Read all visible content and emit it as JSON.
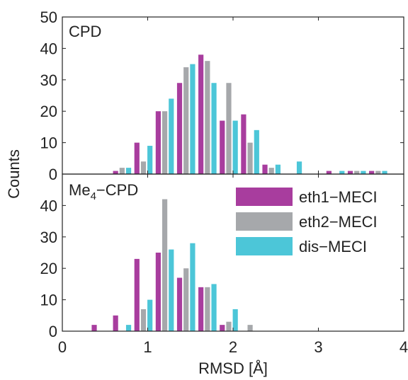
{
  "chart_data": {
    "type": "bar",
    "xlabel": "RMSD [Å]",
    "ylabel": "Counts",
    "xlim": [
      0,
      4
    ],
    "x_ticks": [
      "0",
      "1",
      "2",
      "3",
      "4"
    ],
    "grid": false,
    "legend": {
      "placement": "top-right of lower panel",
      "entries": [
        {
          "name": "eth1−MECI",
          "color": "#a83d9e"
        },
        {
          "name": "eth2−MECI",
          "color": "#a6a8ab"
        },
        {
          "name": "dis−MECI",
          "color": "#4cc6d8"
        }
      ]
    },
    "bin_centers": [
      0.45,
      0.7,
      0.95,
      1.2,
      1.45,
      1.7,
      1.95,
      2.2,
      2.45,
      2.7,
      2.95,
      3.2,
      3.45,
      3.7
    ],
    "panels": [
      {
        "title": "CPD",
        "ylim": [
          0,
          50
        ],
        "y_ticks": [
          "0",
          "10",
          "20",
          "30",
          "40",
          "50"
        ],
        "series": [
          {
            "name": "eth1−MECI",
            "color": "#a83d9e",
            "values": [
              0,
              1,
              10,
              20,
              29,
              38,
              17,
              19,
              3,
              0,
              0,
              1,
              1,
              1
            ]
          },
          {
            "name": "eth2−MECI",
            "color": "#a6a8ab",
            "values": [
              0,
              2,
              4,
              20,
              34,
              36,
              29,
              10,
              2,
              0,
              0,
              0,
              1,
              1
            ]
          },
          {
            "name": "dis−MECI",
            "color": "#4cc6d8",
            "values": [
              0,
              2,
              9,
              24,
              35,
              29,
              17,
              14,
              3,
              4,
              0,
              1,
              1,
              1
            ]
          }
        ]
      },
      {
        "title_main": "Me",
        "title_sub": "4",
        "title_rest": "−CPD",
        "ylim": [
          0,
          50
        ],
        "y_ticks": [
          "0",
          "10",
          "20",
          "30",
          "40"
        ],
        "series": [
          {
            "name": "eth1−MECI",
            "color": "#a83d9e",
            "values": [
              2,
              5,
              23,
              25,
              17,
              14,
              2,
              0,
              0,
              0,
              0,
              0,
              0,
              0
            ]
          },
          {
            "name": "eth2−MECI",
            "color": "#a6a8ab",
            "values": [
              0,
              0,
              7,
              42,
              20,
              14,
              3,
              2,
              0,
              0,
              0,
              0,
              0,
              0
            ]
          },
          {
            "name": "dis−MECI",
            "color": "#4cc6d8",
            "values": [
              0,
              2,
              10,
              26,
              28,
              15,
              7,
              0,
              0,
              0,
              0,
              0,
              0,
              0
            ]
          }
        ]
      }
    ]
  }
}
